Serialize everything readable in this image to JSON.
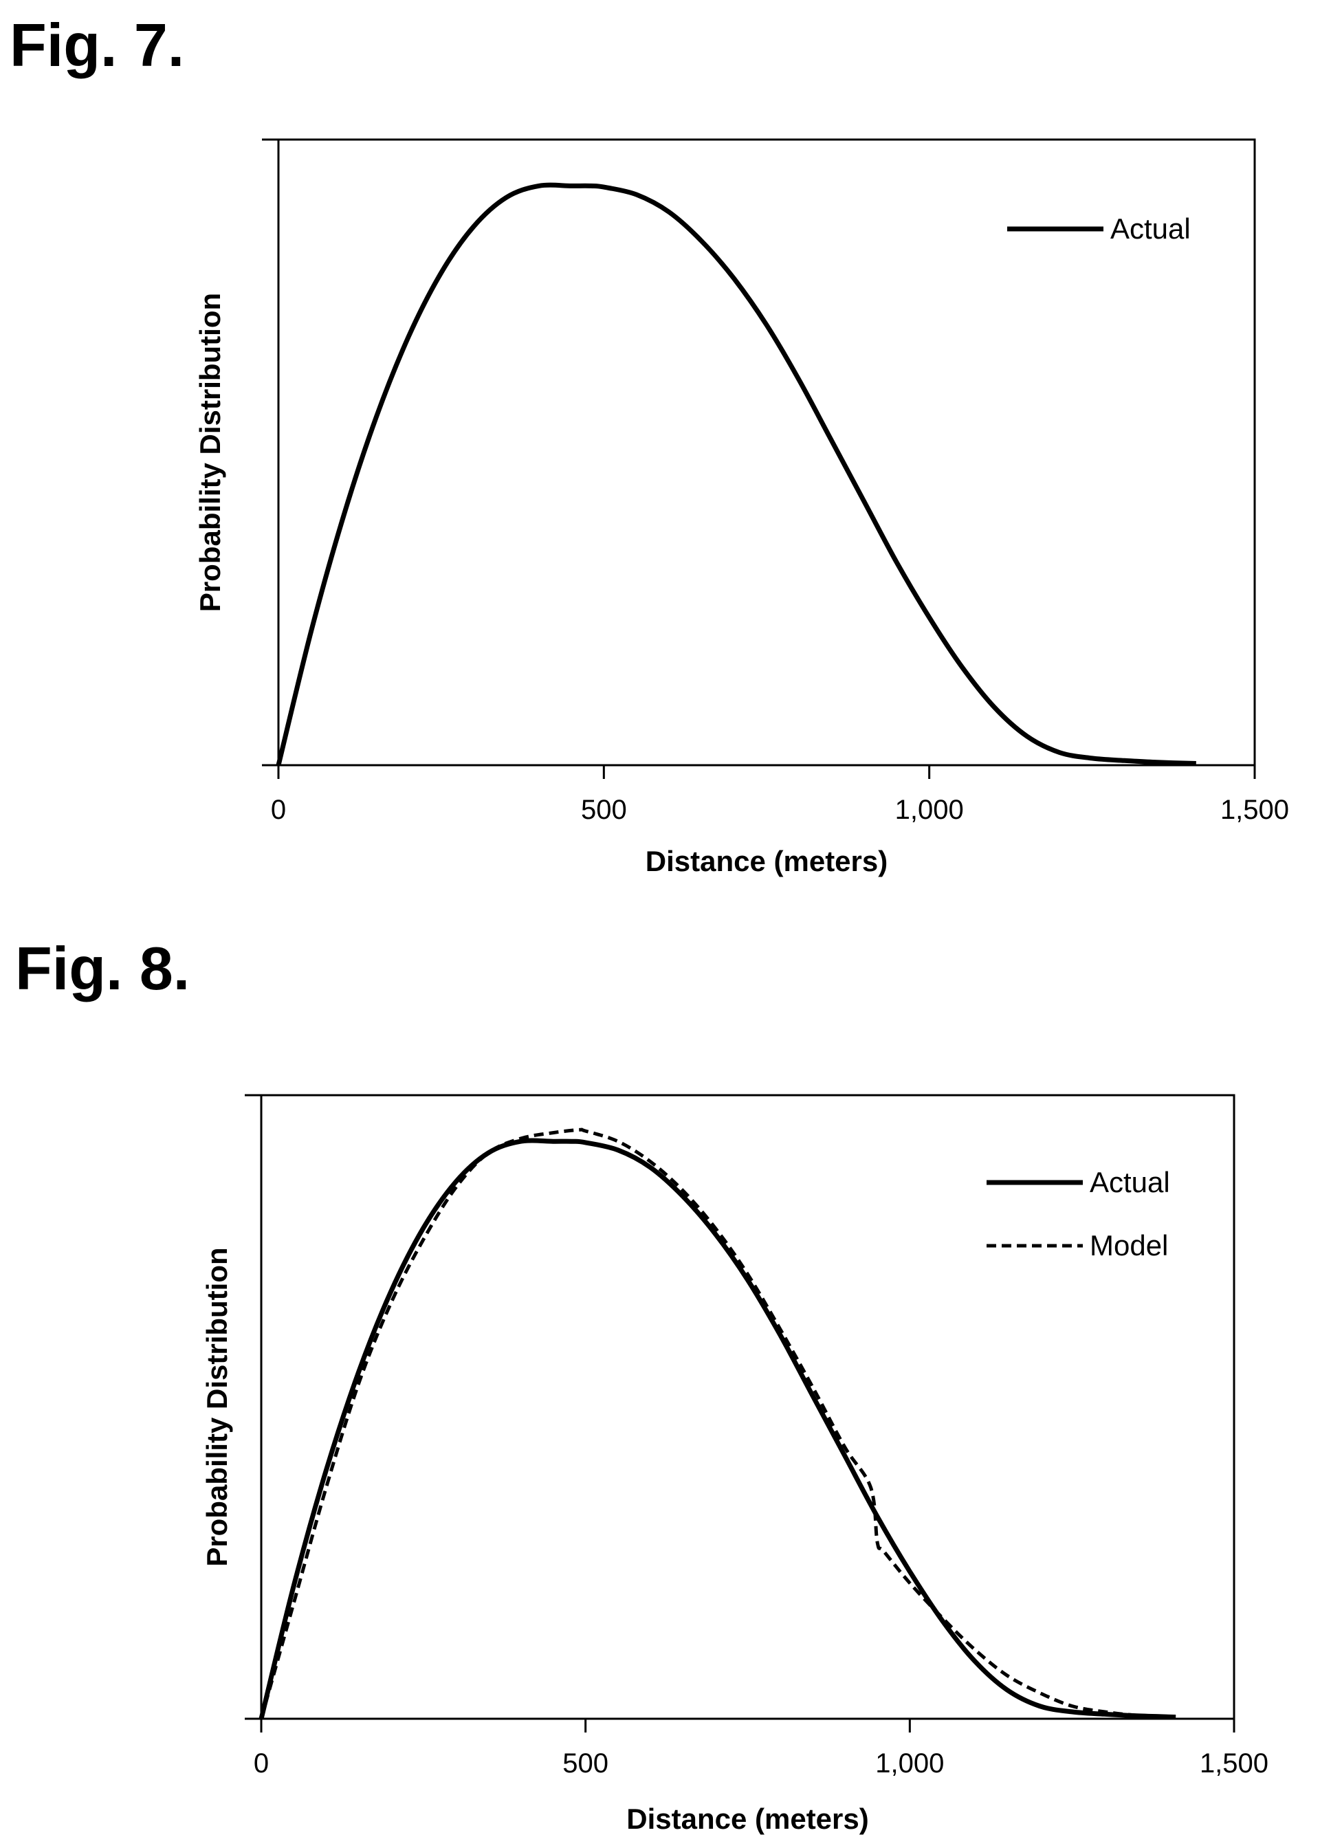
{
  "figures": [
    {
      "label": "Fig. 7."
    },
    {
      "label": "Fig. 8."
    }
  ],
  "chart_data": [
    {
      "type": "line",
      "title": "",
      "xlabel": "Distance (meters)",
      "ylabel": "Probability Distribution",
      "xlim": [
        0,
        1500
      ],
      "ylim": [
        0,
        1.08
      ],
      "xticks": [
        0,
        500,
        1000,
        1500
      ],
      "xtick_labels": [
        "0",
        "500",
        "1,000",
        "1,500"
      ],
      "legend": "top-right",
      "grid": false,
      "series": [
        {
          "name": "Actual",
          "style": "solid",
          "color": "#000000",
          "x": [
            0,
            50,
            100,
            150,
            200,
            250,
            300,
            350,
            400,
            450,
            480,
            500,
            550,
            600,
            650,
            700,
            750,
            800,
            850,
            900,
            950,
            1000,
            1050,
            1100,
            1150,
            1200,
            1250,
            1300,
            1350,
            1410
          ],
          "y": [
            0,
            0.23,
            0.43,
            0.6,
            0.74,
            0.85,
            0.93,
            0.98,
            1.0,
            1.0,
            1.0,
            0.998,
            0.985,
            0.955,
            0.905,
            0.84,
            0.76,
            0.665,
            0.56,
            0.455,
            0.35,
            0.255,
            0.17,
            0.1,
            0.05,
            0.022,
            0.012,
            0.008,
            0.005,
            0.003
          ]
        }
      ]
    },
    {
      "type": "line",
      "title": "",
      "xlabel": "Distance (meters)",
      "ylabel": "Probability Distribution",
      "xlim": [
        0,
        1500
      ],
      "ylim": [
        0,
        1.08
      ],
      "xticks": [
        0,
        500,
        1000,
        1500
      ],
      "xtick_labels": [
        "0",
        "500",
        "1,000",
        "1,500"
      ],
      "legend": "top-right",
      "grid": false,
      "series": [
        {
          "name": "Actual",
          "style": "solid",
          "color": "#000000",
          "x": [
            0,
            50,
            100,
            150,
            200,
            250,
            300,
            350,
            400,
            450,
            480,
            500,
            550,
            600,
            650,
            700,
            750,
            800,
            850,
            900,
            950,
            1000,
            1050,
            1100,
            1150,
            1200,
            1250,
            1300,
            1350,
            1410
          ],
          "y": [
            0,
            0.23,
            0.43,
            0.6,
            0.74,
            0.85,
            0.93,
            0.98,
            1.0,
            1.0,
            1.0,
            0.998,
            0.985,
            0.955,
            0.905,
            0.84,
            0.76,
            0.665,
            0.56,
            0.455,
            0.35,
            0.255,
            0.17,
            0.1,
            0.05,
            0.022,
            0.012,
            0.008,
            0.005,
            0.003
          ]
        },
        {
          "name": "Model",
          "style": "dashed",
          "color": "#000000",
          "x": [
            0,
            50,
            100,
            150,
            200,
            250,
            300,
            350,
            400,
            450,
            490,
            500,
            550,
            600,
            650,
            700,
            750,
            800,
            850,
            900,
            940,
            950,
            960,
            1000,
            1050,
            1100,
            1150,
            1200,
            1250,
            1300,
            1350,
            1410
          ],
          "y": [
            0,
            0.2,
            0.4,
            0.58,
            0.72,
            0.83,
            0.92,
            0.98,
            1.005,
            1.015,
            1.02,
            1.018,
            1.0,
            0.965,
            0.915,
            0.85,
            0.77,
            0.675,
            0.575,
            0.47,
            0.4,
            0.305,
            0.29,
            0.235,
            0.175,
            0.12,
            0.075,
            0.045,
            0.022,
            0.012,
            0.006,
            0.003
          ]
        }
      ]
    }
  ]
}
